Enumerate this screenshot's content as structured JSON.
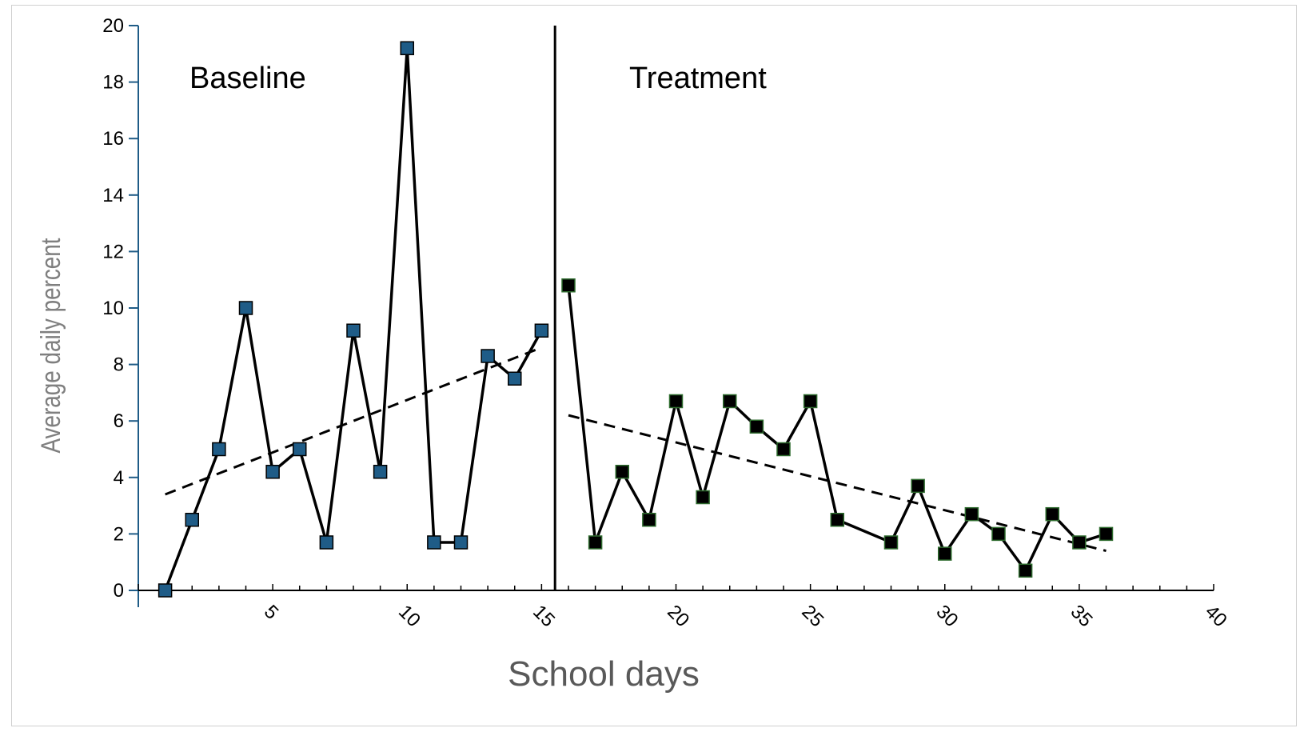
{
  "chart_data": {
    "type": "line",
    "xlabel": "School days",
    "ylabel": "Average daily percent",
    "xlim": [
      0,
      40
    ],
    "ylim": [
      0,
      20
    ],
    "x_ticks": [
      5,
      10,
      15,
      20,
      25,
      30,
      35,
      40
    ],
    "y_ticks": [
      0,
      2,
      4,
      6,
      8,
      10,
      12,
      14,
      16,
      18,
      20
    ],
    "grid": false,
    "phase_change_x": 15.5,
    "annotations": [
      "Baseline",
      "Treatment"
    ],
    "series": [
      {
        "phase": "Baseline",
        "marker_color": "#1f5c87",
        "x": [
          1,
          2,
          3,
          4,
          5,
          6,
          7,
          8,
          9,
          10,
          11,
          12,
          13,
          14,
          15
        ],
        "y": [
          0,
          2.5,
          5,
          10,
          4.2,
          5,
          1.7,
          9.2,
          4.2,
          19.2,
          1.7,
          1.7,
          8.3,
          7.5,
          9.2
        ]
      },
      {
        "phase": "Treatment",
        "marker_color": "#000000",
        "x": [
          16,
          17,
          18,
          19,
          20,
          21,
          22,
          23,
          24,
          25,
          26,
          28,
          29,
          30,
          31,
          32,
          33,
          34,
          35,
          36
        ],
        "y": [
          10.8,
          1.7,
          4.2,
          2.5,
          6.7,
          3.3,
          6.7,
          5.8,
          5,
          6.7,
          2.5,
          1.7,
          3.7,
          1.3,
          2.7,
          2,
          0.7,
          2.7,
          1.7,
          2
        ]
      }
    ],
    "trendlines": [
      {
        "phase": "Baseline",
        "x": [
          1,
          15
        ],
        "y": [
          3.4,
          8.6
        ]
      },
      {
        "phase": "Treatment",
        "x": [
          16,
          36
        ],
        "y": [
          6.2,
          1.4
        ]
      }
    ]
  }
}
